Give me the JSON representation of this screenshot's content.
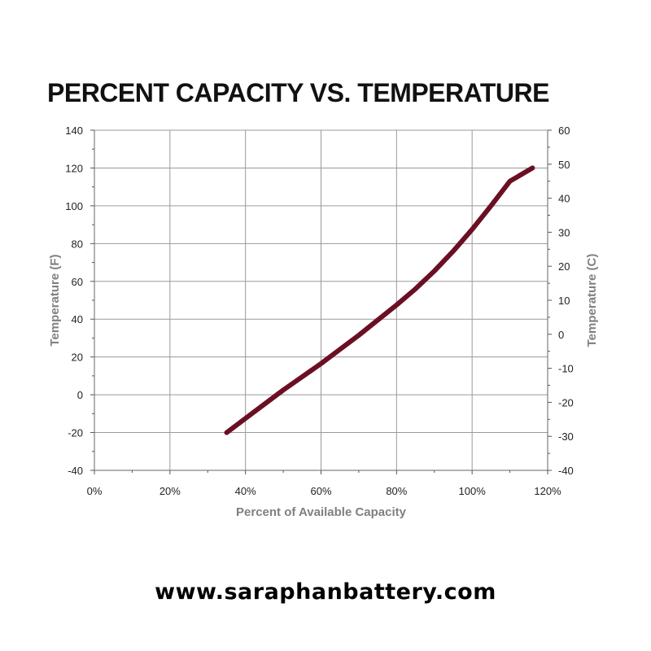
{
  "title": "PERCENT CAPACITY VS. TEMPERATURE",
  "footer": {
    "url": "www.saraphanbattery.com"
  },
  "colors": {
    "curve": "#6b0f24",
    "grid": "#9a9a9a",
    "axis_title": "#808080"
  },
  "chart_data": {
    "type": "line",
    "title": "PERCENT CAPACITY VS. TEMPERATURE",
    "xlabel": "Percent of Available Capacity",
    "ylabel": "Temperature (F)",
    "y2label": "Temperature  (C)",
    "xlim": [
      0,
      120
    ],
    "ylim": [
      -40,
      140
    ],
    "y2lim": [
      -40,
      60
    ],
    "x_ticks": [
      "0%",
      "20%",
      "40%",
      "60%",
      "80%",
      "100%",
      "120%"
    ],
    "y_ticks": [
      "-40",
      "-20",
      "0",
      "20",
      "40",
      "60",
      "80",
      "100",
      "120",
      "140"
    ],
    "y2_ticks": [
      "-40",
      "-30",
      "-20",
      "-10",
      "0",
      "10",
      "20",
      "30",
      "40",
      "50",
      "60"
    ],
    "grid": true,
    "series": [
      {
        "x": [
          35,
          40,
          45,
          50,
          55,
          60,
          65,
          70,
          75,
          80,
          85,
          90,
          95,
          100,
          105,
          110,
          116
        ],
        "y": [
          -20,
          -12.5,
          -5,
          2.5,
          9.5,
          16.5,
          24,
          31.5,
          39.5,
          47.5,
          56,
          65.5,
          76,
          87.5,
          100,
          113,
          120
        ]
      }
    ]
  }
}
